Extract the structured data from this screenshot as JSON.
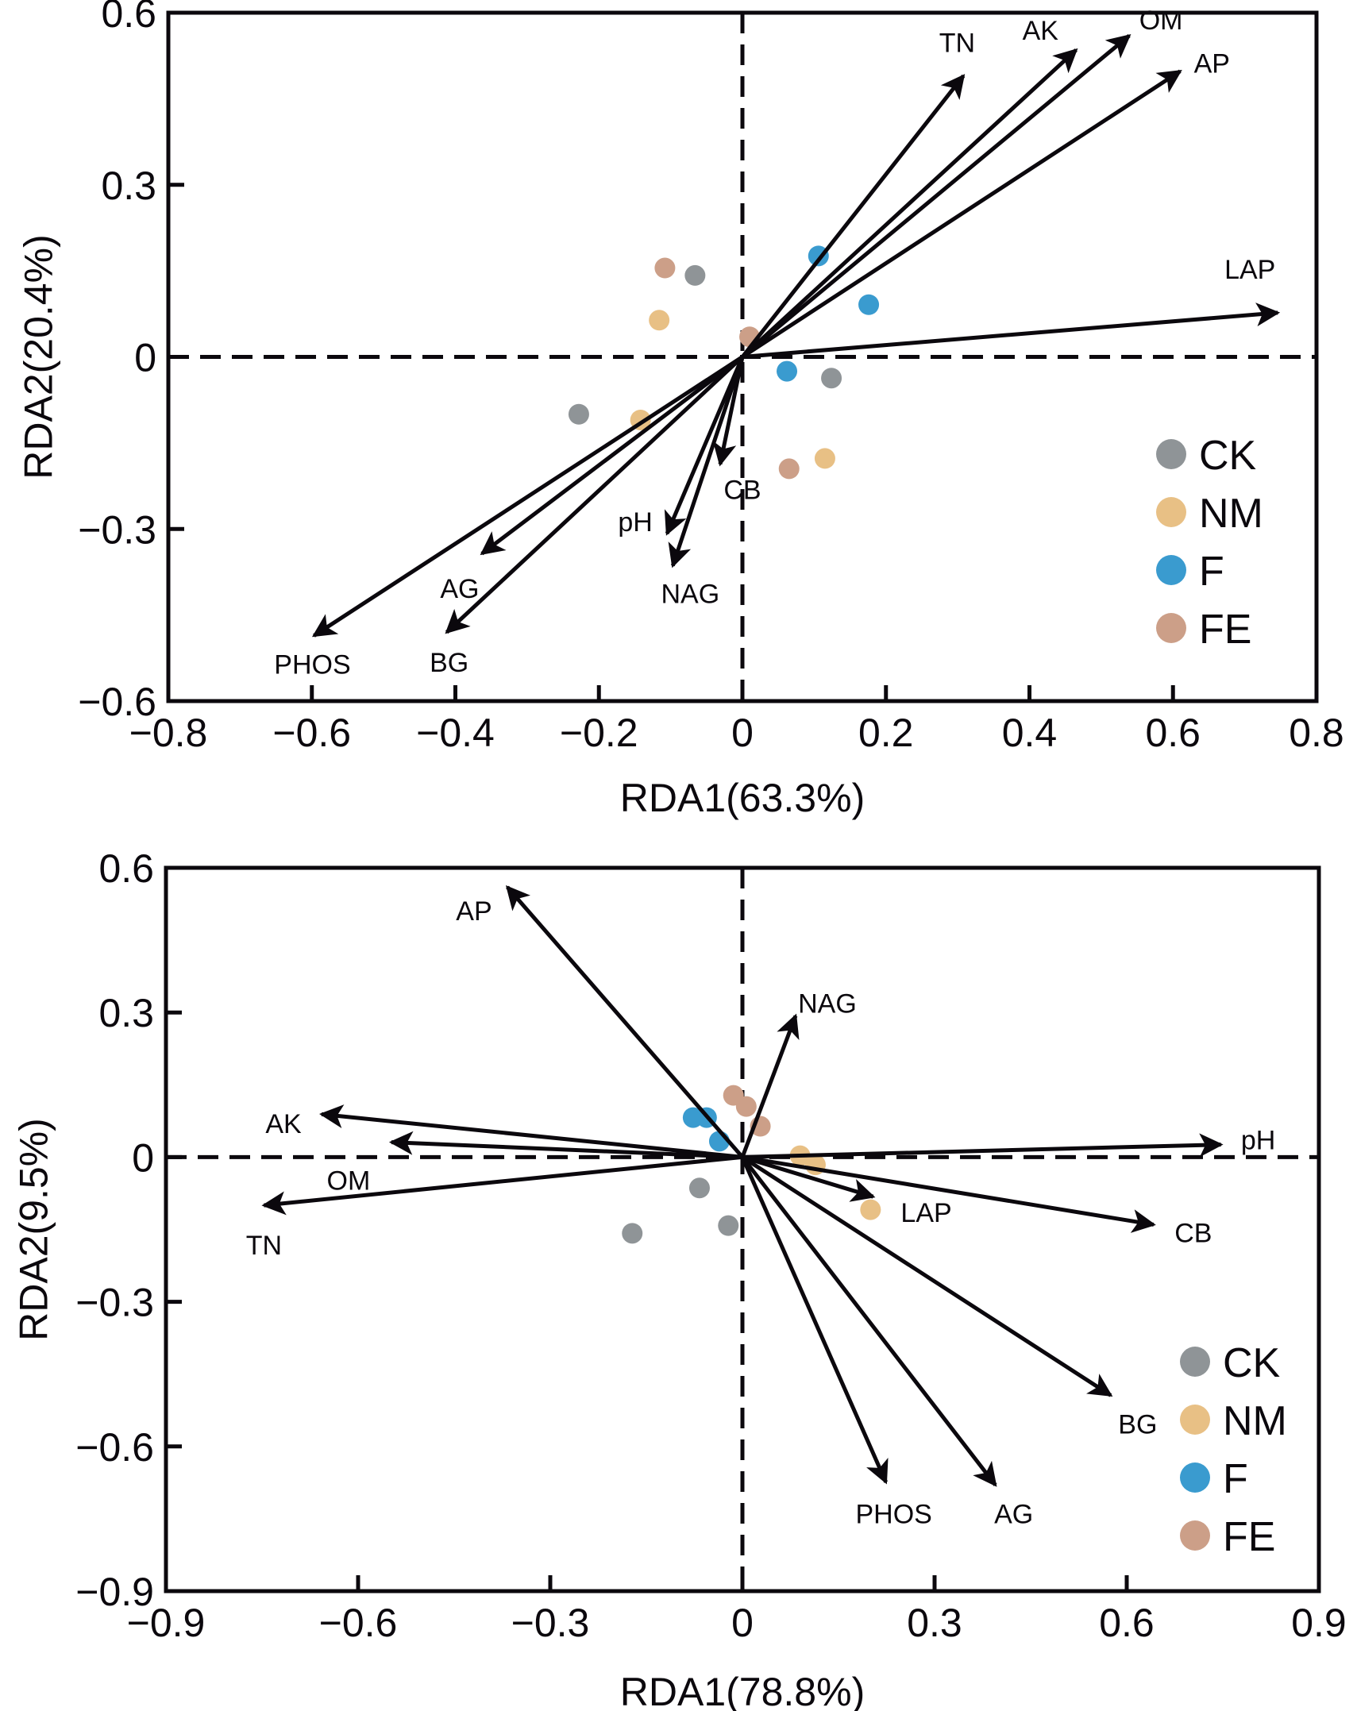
{
  "chart_data": [
    {
      "type": "scatter",
      "subtype": "rda-biplot",
      "title": "",
      "xlabel": "RDA1(63.3%)",
      "ylabel": "RDA2(20.4%)",
      "xlim": [
        -0.8,
        0.8
      ],
      "ylim": [
        -0.6,
        0.6
      ],
      "xticks": [
        -0.8,
        -0.6,
        -0.4,
        -0.2,
        0,
        0.2,
        0.4,
        0.6,
        0.8
      ],
      "xtick_labels": [
        "−0.8",
        "−0.6",
        "−0.4",
        "−0.2",
        "0",
        "0.2",
        "0.4",
        "0.6",
        "0.8"
      ],
      "yticks": [
        -0.6,
        -0.3,
        0,
        0.3,
        0.6
      ],
      "ytick_labels": [
        "−0.6",
        "−0.3",
        "0",
        "0.3",
        "0.6"
      ],
      "grid": false,
      "zero_lines": "dashed",
      "legend_position": "bottom-right",
      "arrows": [
        {
          "name": "TN",
          "x": 0.308,
          "y": 0.49
        },
        {
          "name": "AK",
          "x": 0.465,
          "y": 0.535
        },
        {
          "name": "OM",
          "x": 0.539,
          "y": 0.56
        },
        {
          "name": "AP",
          "x": 0.61,
          "y": 0.498
        },
        {
          "name": "LAP",
          "x": 0.746,
          "y": 0.077
        },
        {
          "name": "PHOS",
          "x": -0.597,
          "y": -0.486
        },
        {
          "name": "AG",
          "x": -0.363,
          "y": -0.343
        },
        {
          "name": "BG",
          "x": -0.412,
          "y": -0.48
        },
        {
          "name": "pH",
          "x": -0.105,
          "y": -0.308
        },
        {
          "name": "NAG",
          "x": -0.097,
          "y": -0.364
        },
        {
          "name": "CB",
          "x": -0.031,
          "y": -0.187
        }
      ],
      "series": [
        {
          "name": "CK",
          "color": "#8f9497",
          "points": [
            [
              -0.066,
              0.142
            ],
            [
              0.124,
              -0.037
            ],
            [
              -0.228,
              -0.1
            ]
          ]
        },
        {
          "name": "NM",
          "color": "#e8c085",
          "points": [
            [
              -0.116,
              0.064
            ],
            [
              -0.142,
              -0.11
            ],
            [
              0.115,
              -0.177
            ]
          ]
        },
        {
          "name": "F",
          "color": "#3a9bcf",
          "points": [
            [
              0.106,
              0.176
            ],
            [
              0.176,
              0.091
            ],
            [
              0.062,
              -0.025
            ]
          ]
        },
        {
          "name": "FE",
          "color": "#cc9f88",
          "points": [
            [
              -0.108,
              0.155
            ],
            [
              0.01,
              0.035
            ],
            [
              0.065,
              -0.195
            ]
          ]
        }
      ]
    },
    {
      "type": "scatter",
      "subtype": "rda-biplot",
      "title": "",
      "xlabel": "RDA1(78.8%)",
      "ylabel": "RDA2(9.5%)",
      "xlim": [
        -0.9,
        0.9
      ],
      "ylim": [
        -0.9,
        0.6
      ],
      "xticks": [
        -0.9,
        -0.6,
        -0.3,
        0,
        0.3,
        0.6,
        0.9
      ],
      "xtick_labels": [
        "−0.9",
        "−0.6",
        "−0.3",
        "0",
        "0.3",
        "0.6",
        "0.9"
      ],
      "yticks": [
        -0.9,
        -0.6,
        -0.3,
        0,
        0.3,
        0.6
      ],
      "ytick_labels": [
        "−0.9",
        "−0.6",
        "−0.3",
        "0",
        "0.3",
        "0.6"
      ],
      "grid": false,
      "zero_lines": "dashed",
      "legend_position": "bottom-right",
      "arrows": [
        {
          "name": "AP",
          "x": -0.367,
          "y": 0.56
        },
        {
          "name": "NAG",
          "x": 0.083,
          "y": 0.293
        },
        {
          "name": "AK",
          "x": -0.657,
          "y": 0.089
        },
        {
          "name": "OM",
          "x": -0.548,
          "y": 0.031
        },
        {
          "name": "TN",
          "x": -0.747,
          "y": -0.1
        },
        {
          "name": "pH",
          "x": 0.747,
          "y": 0.026
        },
        {
          "name": "LAP",
          "x": 0.204,
          "y": -0.082
        },
        {
          "name": "CB",
          "x": 0.642,
          "y": -0.14
        },
        {
          "name": "BG",
          "x": 0.575,
          "y": -0.494
        },
        {
          "name": "PHOS",
          "x": 0.224,
          "y": -0.674
        },
        {
          "name": "AG",
          "x": 0.395,
          "y": -0.68
        }
      ],
      "series": [
        {
          "name": "CK",
          "color": "#8f9497",
          "points": [
            [
              -0.067,
              -0.064
            ],
            [
              -0.022,
              -0.142
            ],
            [
              -0.172,
              -0.158
            ]
          ]
        },
        {
          "name": "NM",
          "color": "#e8c085",
          "points": [
            [
              0.09,
              0.003
            ],
            [
              0.114,
              -0.016
            ],
            [
              0.2,
              -0.109
            ]
          ]
        },
        {
          "name": "F",
          "color": "#3a9bcf",
          "points": [
            [
              -0.077,
              0.082
            ],
            [
              -0.056,
              0.082
            ],
            [
              -0.036,
              0.033
            ]
          ]
        },
        {
          "name": "FE",
          "color": "#cc9f88",
          "points": [
            [
              -0.014,
              0.128
            ],
            [
              0.006,
              0.105
            ],
            [
              0.028,
              0.064
            ]
          ]
        }
      ]
    }
  ]
}
